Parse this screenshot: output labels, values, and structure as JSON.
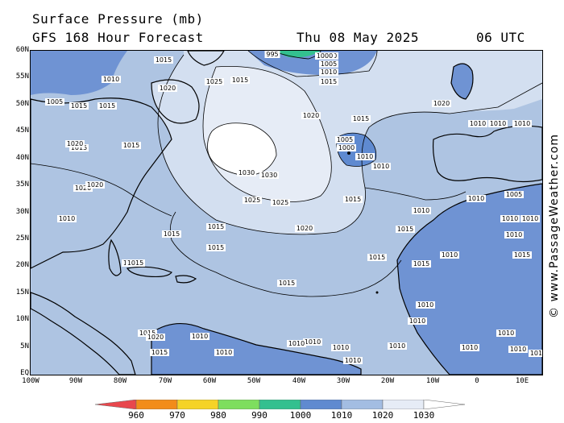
{
  "title": "Surface Pressure (mb)",
  "subtitle": "GFS 168 Hour Forecast",
  "date": "Thu 08 May 2025",
  "time": "06 UTC",
  "watermark": "© www.PassageWeather.com",
  "lat_labels": [
    "60N",
    "55N",
    "50N",
    "45N",
    "40N",
    "35N",
    "30N",
    "25N",
    "20N",
    "15N",
    "10N",
    "5N",
    "EQ"
  ],
  "lon_labels": [
    "100W",
    "90W",
    "80W",
    "70W",
    "60W",
    "50W",
    "40W",
    "30W",
    "20W",
    "10W",
    "0",
    "10E"
  ],
  "colorbar": {
    "labels": [
      "960",
      "970",
      "980",
      "990",
      "1000",
      "1010",
      "1020",
      "1030"
    ],
    "colors": [
      "#e8474d",
      "#f28c1a",
      "#f5d327",
      "#7ede5e",
      "#33c08f",
      "#5f8ad0",
      "#a3bde2",
      "#e6ecf6",
      "#ffffff"
    ]
  },
  "colors": {
    "ocean_1015": "#aec4e2",
    "high_1020": "#d3dff0",
    "high_1025": "#e9eff8",
    "high_1030": "#ffffff",
    "low_1010": "#6f93d3",
    "low_1005": "#5c84c9",
    "land_border": "#000000"
  },
  "isobar_labels": [
    {
      "text": "1000"
    },
    {
      "text": "1005"
    },
    {
      "text": "1010"
    },
    {
      "text": "1015"
    },
    {
      "text": "1015"
    },
    {
      "text": "1020"
    },
    {
      "text": "1025"
    },
    {
      "text": "1030"
    },
    {
      "text": "1030"
    },
    {
      "text": "1025"
    },
    {
      "text": "1025"
    },
    {
      "text": "1020"
    },
    {
      "text": "1020"
    },
    {
      "text": "1015"
    },
    {
      "text": "1015"
    },
    {
      "text": "1005"
    },
    {
      "text": "1000"
    },
    {
      "text": "1010"
    },
    {
      "text": "1010"
    },
    {
      "text": "1020"
    },
    {
      "text": "1015"
    },
    {
      "text": "1010"
    },
    {
      "text": "1015"
    },
    {
      "text": "1015"
    },
    {
      "text": "1015"
    },
    {
      "text": "1015"
    },
    {
      "text": "1015"
    },
    {
      "text": "1010"
    },
    {
      "text": "1010"
    },
    {
      "text": "1010"
    },
    {
      "text": "1005"
    },
    {
      "text": "1010"
    },
    {
      "text": "1010"
    },
    {
      "text": "1010"
    },
    {
      "text": "1010"
    },
    {
      "text": "995"
    },
    {
      "text": "1000"
    },
    {
      "text": "1005"
    },
    {
      "text": "1010"
    },
    {
      "text": "1015"
    },
    {
      "text": "1020"
    },
    {
      "text": "1010"
    },
    {
      "text": "1015"
    },
    {
      "text": "1020"
    },
    {
      "text": "1020"
    },
    {
      "text": "1015"
    },
    {
      "text": "1015"
    },
    {
      "text": "1015"
    },
    {
      "text": "1015"
    },
    {
      "text": "1015"
    },
    {
      "text": "1015"
    },
    {
      "text": "1010"
    },
    {
      "text": "1010"
    },
    {
      "text": "1010"
    },
    {
      "text": "1010"
    },
    {
      "text": "1010"
    },
    {
      "text": "1010"
    },
    {
      "text": "1010"
    },
    {
      "text": "1010"
    },
    {
      "text": "1010"
    },
    {
      "text": "1010"
    },
    {
      "text": "1010"
    },
    {
      "text": "1010"
    },
    {
      "text": "1010"
    },
    {
      "text": "1015"
    },
    {
      "text": "1015"
    },
    {
      "text": "1020"
    },
    {
      "text": "1015"
    },
    {
      "text": "1010"
    }
  ]
}
